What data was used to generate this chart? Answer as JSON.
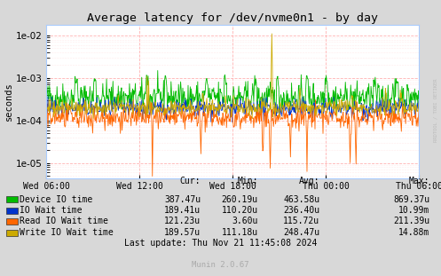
{
  "title": "Average latency for /dev/nvme0n1 - by day",
  "ylabel": "seconds",
  "fig_bg_color": "#d8d8d8",
  "plot_bg_color": "#ffffff",
  "grid_color_major": "#ffaaaa",
  "grid_color_minor": "#ffdddd",
  "x_tick_labels": [
    "Wed 06:00",
    "Wed 12:00",
    "Wed 18:00",
    "Thu 00:00",
    "Thu 06:00"
  ],
  "legend_entries": [
    {
      "label": "Device IO time",
      "color": "#00bb00"
    },
    {
      "label": "IO Wait time",
      "color": "#0033cc"
    },
    {
      "label": "Read IO Wait time",
      "color": "#ff6600"
    },
    {
      "label": "Write IO Wait time",
      "color": "#ccaa00"
    }
  ],
  "stats_headers": [
    "Cur:",
    "Min:",
    "Avg:",
    "Max:"
  ],
  "stats_rows": [
    [
      "Device IO time",
      "387.47u",
      "260.19u",
      "463.58u",
      "869.37u"
    ],
    [
      "IO Wait time",
      "189.41u",
      "110.20u",
      "236.40u",
      "10.99m"
    ],
    [
      "Read IO Wait time",
      "121.23u",
      "3.60u",
      "115.72u",
      "211.39u"
    ],
    [
      "Write IO Wait time",
      "189.57u",
      "111.18u",
      "248.47u",
      "14.88m"
    ]
  ],
  "footer": "Last update: Thu Nov 21 11:45:08 2024",
  "munin_label": "Munin 2.0.67",
  "n_points": 700,
  "seed": 42
}
